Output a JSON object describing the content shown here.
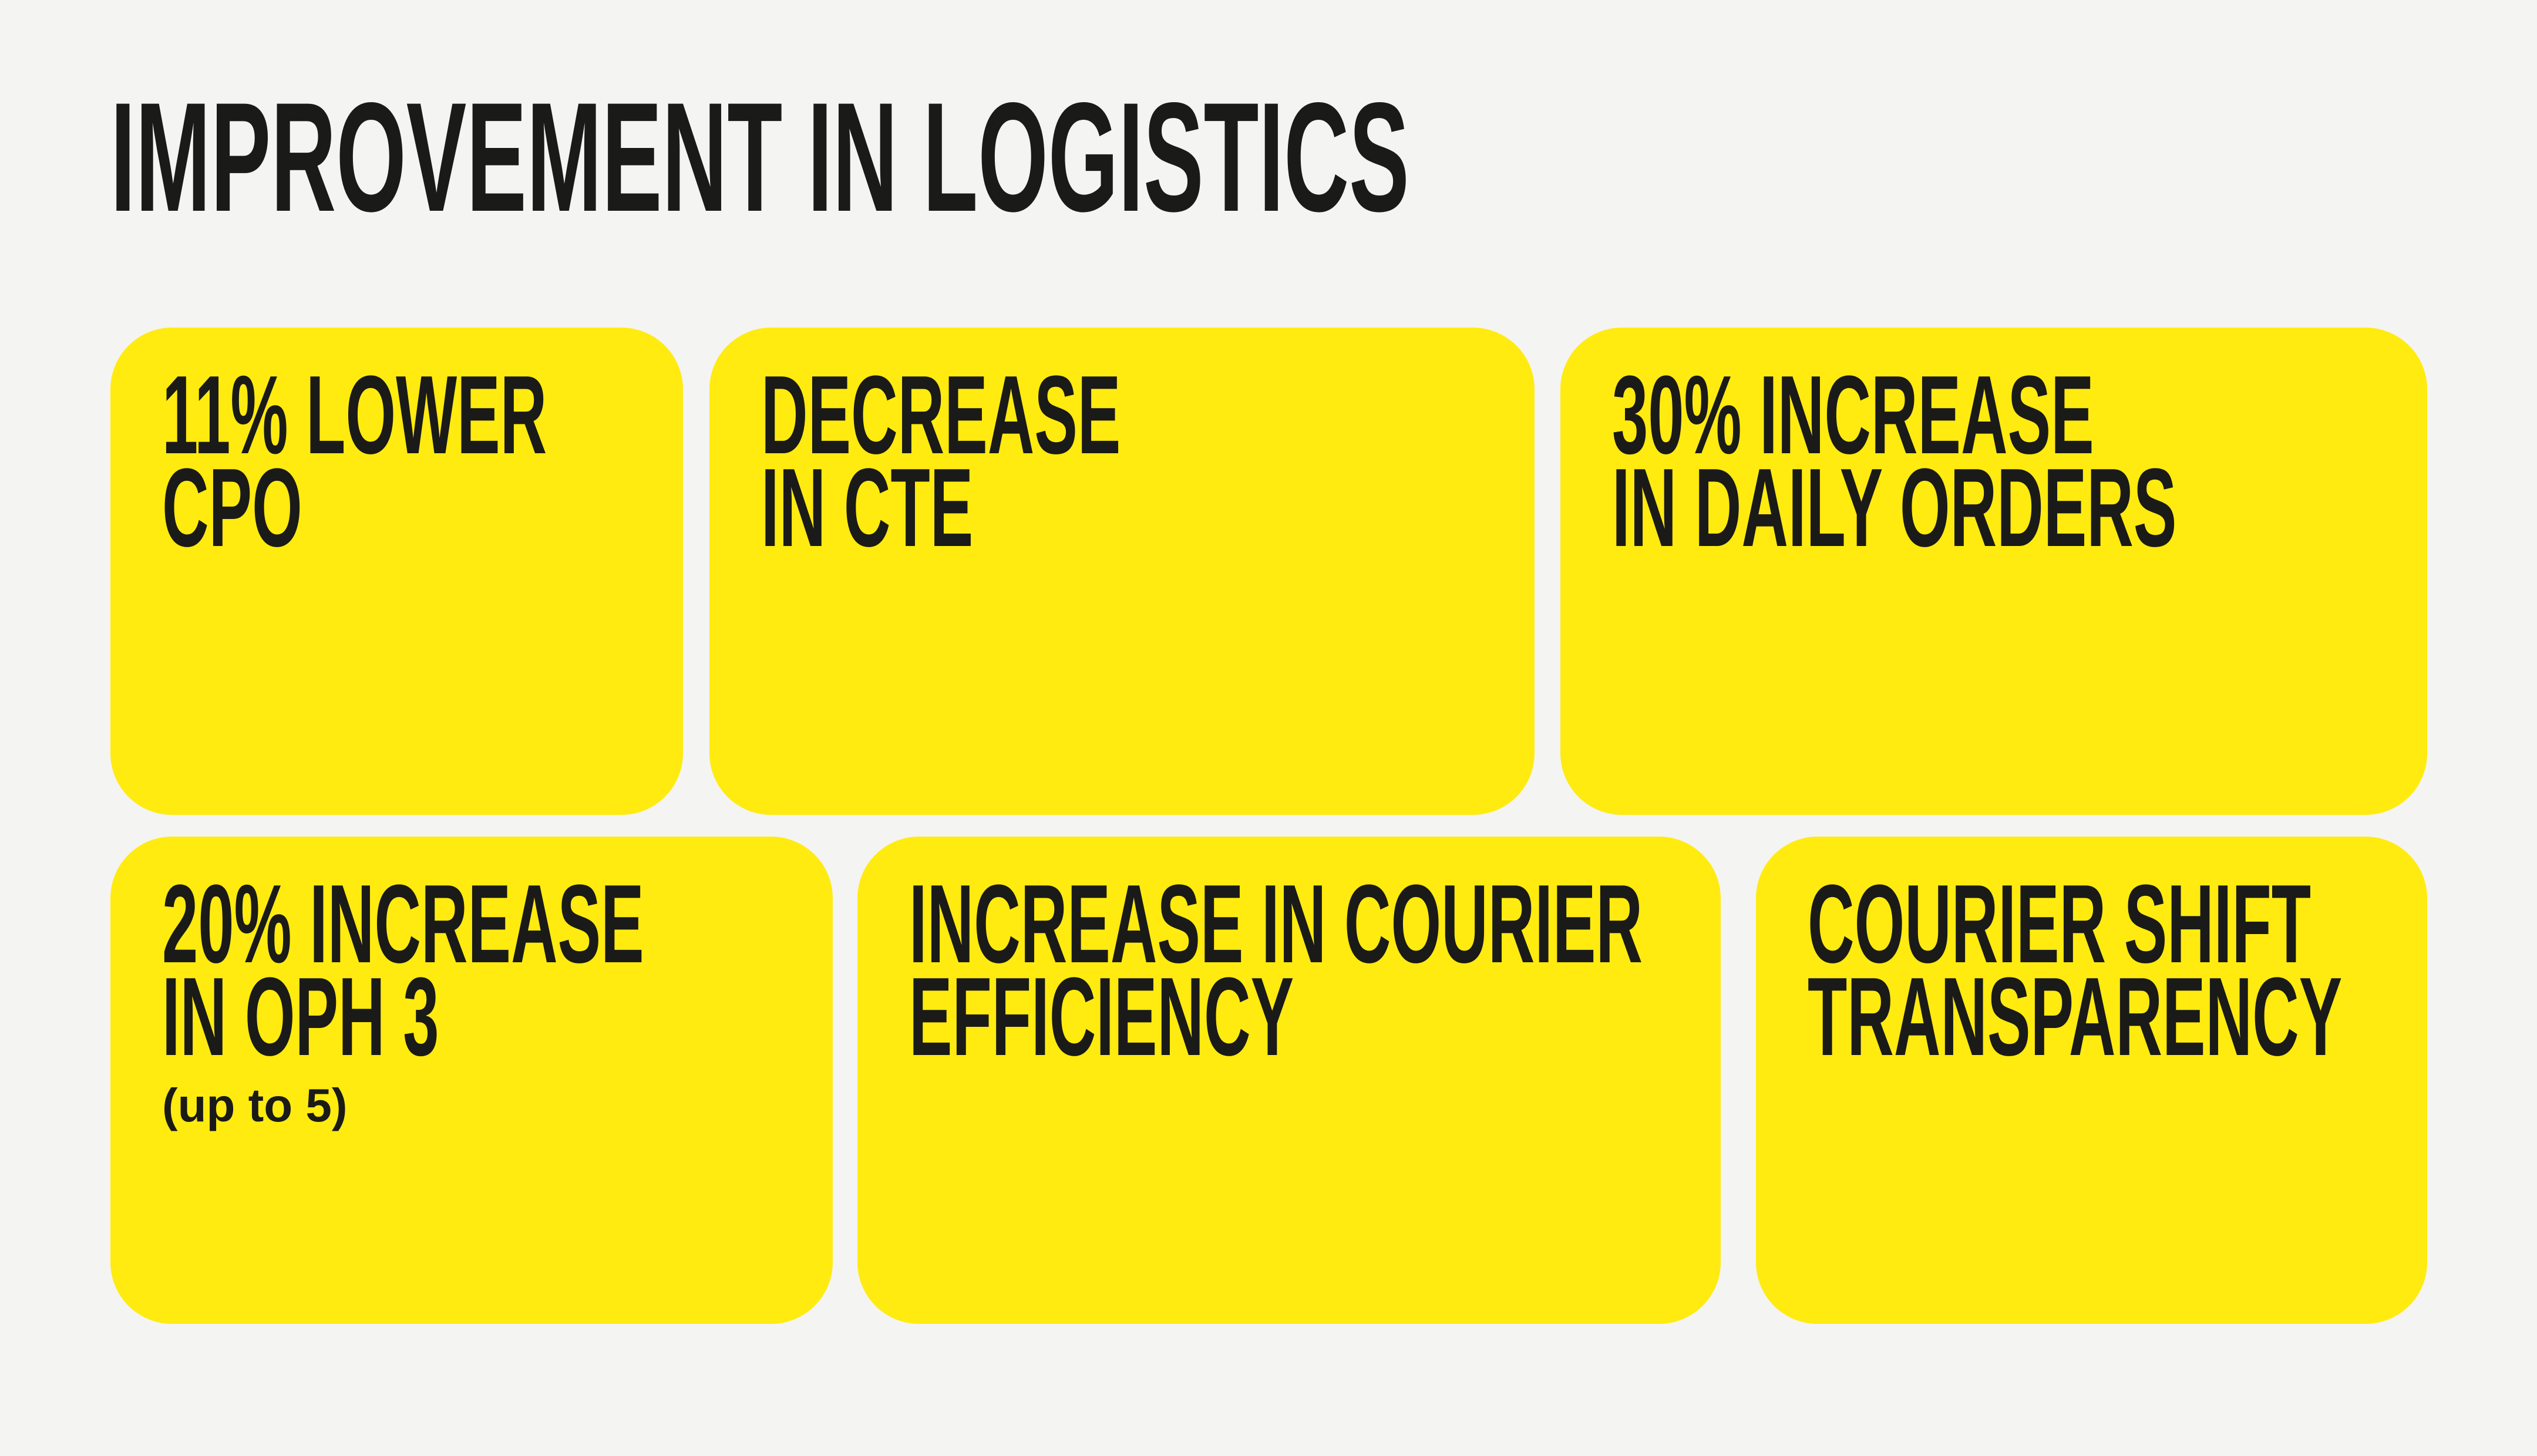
{
  "theme": {
    "background": "#F4F4F2",
    "card_color": "#FFEB0F",
    "text_color": "#1A1A18"
  },
  "header": {
    "title": "IMPROVEMENT IN LOGISTICS"
  },
  "cards": [
    {
      "name": "lower-cpo",
      "text": "11% LOWER\nCPO"
    },
    {
      "name": "decrease-cte",
      "text": "DECREASE\nIN CTE"
    },
    {
      "name": "increase-daily-orders",
      "text": "30% INCREASE\nIN DAILY ORDERS"
    },
    {
      "name": "increase-oph",
      "text": "20% INCREASE\nIN OPH 3",
      "note": "(up to 5)"
    },
    {
      "name": "courier-efficiency",
      "text": "INCREASE IN COURIER\nEFFICIENCY"
    },
    {
      "name": "courier-shift-transparency",
      "text": "COURIER SHIFT\nTRANSPARENCY"
    }
  ]
}
